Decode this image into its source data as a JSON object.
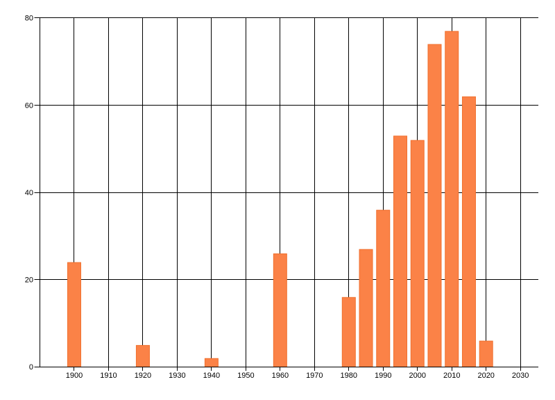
{
  "chart_data": {
    "type": "bar",
    "title": "",
    "xlabel": "",
    "ylabel": "",
    "x": [
      1900,
      1920,
      1940,
      1960,
      1980,
      1985,
      1990,
      1995,
      2000,
      2005,
      2010,
      2015,
      2020
    ],
    "values": [
      24,
      5,
      2,
      26,
      16,
      27,
      36,
      53,
      52,
      74,
      77,
      62,
      6
    ],
    "x_tick_labels": [
      "1900",
      "1910",
      "1920",
      "1930",
      "1940",
      "1950",
      "1960",
      "1970",
      "1980",
      "1990",
      "2000",
      "2010",
      "2020",
      "2030"
    ],
    "x_ticks": [
      1900,
      1910,
      1920,
      1930,
      1940,
      1950,
      1960,
      1970,
      1980,
      1990,
      2000,
      2010,
      2020,
      2030
    ],
    "y_tick_labels": [
      "0",
      "20",
      "40",
      "60",
      "80"
    ],
    "y_ticks": [
      0,
      20,
      40,
      60,
      80
    ],
    "xlim": [
      1890,
      2035
    ],
    "ylim": [
      0,
      80
    ],
    "grid": "both",
    "legend": "none",
    "colors": {
      "bar_fill": "#FB8247",
      "bar_edge": "#F0702E",
      "grid_line": "#000000",
      "axis_line": "#000000",
      "tick_label": "#000000",
      "background": "#FFFFFF"
    }
  }
}
